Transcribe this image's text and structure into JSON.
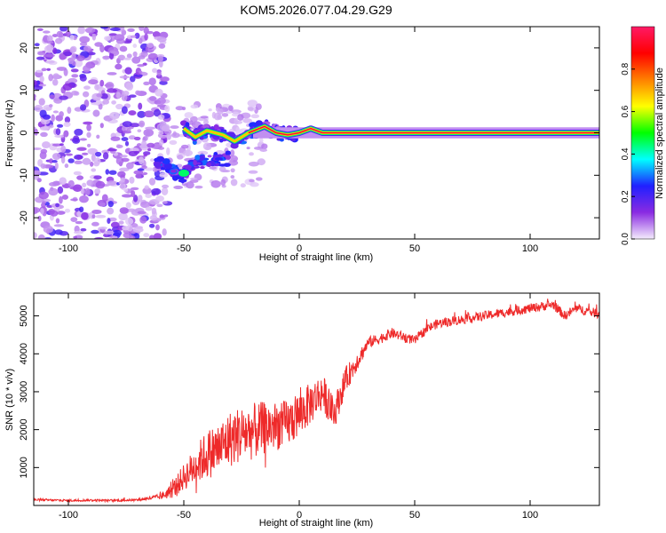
{
  "title": "KOM5.2026.077.04.29.G29",
  "chart_data": [
    {
      "type": "heatmap",
      "xlabel": "Height of straight line (km)",
      "ylabel": "Frequency (Hz)",
      "xlim": [
        -115,
        130
      ],
      "ylim": [
        -25,
        25
      ],
      "xticks": [
        -100,
        -50,
        0,
        50,
        100
      ],
      "yticks": [
        -20,
        -10,
        0,
        10,
        20
      ],
      "grid": false,
      "regions": [
        {
          "x": [
            -115,
            -60
          ],
          "description": "scattered noise",
          "amplitude": [
            0.0,
            0.3
          ],
          "freq": [
            -25,
            25
          ]
        },
        {
          "x": [
            -60,
            -25
          ],
          "description": "patchy signal",
          "amplitude": [
            0.1,
            0.4
          ],
          "freq": [
            -12,
            5
          ]
        },
        {
          "x": [
            -25,
            130
          ],
          "description": "narrow carrier line",
          "amplitude": [
            0.8,
            1.0
          ],
          "freq": [
            -1,
            1
          ]
        }
      ],
      "trace": [
        {
          "x": -50,
          "y": 1
        },
        {
          "x": -45,
          "y": -1
        },
        {
          "x": -40,
          "y": 0.5
        },
        {
          "x": -33,
          "y": -0.5
        },
        {
          "x": -28,
          "y": -2
        },
        {
          "x": -22,
          "y": 0
        },
        {
          "x": -15,
          "y": 1.5
        },
        {
          "x": -10,
          "y": 0
        },
        {
          "x": -5,
          "y": -0.5
        },
        {
          "x": 0,
          "y": 0
        },
        {
          "x": 5,
          "y": 1
        },
        {
          "x": 10,
          "y": 0
        },
        {
          "x": 130,
          "y": 0
        }
      ],
      "trace_low": [
        {
          "x": -62,
          "y": -6
        },
        {
          "x": -55,
          "y": -9
        },
        {
          "x": -50,
          "y": -10
        },
        {
          "x": -45,
          "y": -7
        },
        {
          "x": -38,
          "y": -6.5
        },
        {
          "x": -30,
          "y": -6
        }
      ],
      "colorbar": {
        "label": "Normalized spectral amplitude",
        "range": [
          0,
          1
        ],
        "ticks": [
          0.0,
          0.2,
          0.4,
          0.6,
          0.8
        ],
        "tick_labels": [
          "0.0",
          "0.2",
          "0.4",
          "0.6",
          "0.8"
        ],
        "colors": [
          "#f4ecfc",
          "#8a2be2",
          "#2020ff",
          "#00ffff",
          "#00ff00",
          "#ffff00",
          "#ff8000",
          "#ff0000",
          "#ff1a66"
        ]
      }
    },
    {
      "type": "line",
      "xlabel": "Height of straight line (km)",
      "ylabel": "SNR (10 * v/v)",
      "xlim": [
        -115,
        130
      ],
      "ylim": [
        0,
        5600
      ],
      "xticks": [
        -100,
        -50,
        0,
        50,
        100
      ],
      "yticks": [
        1000,
        2000,
        3000,
        4000,
        5000
      ],
      "grid": false,
      "series": [
        {
          "color": "#ee2a2a",
          "points": [
            [
              -115,
              150
            ],
            [
              -100,
              130
            ],
            [
              -90,
              140
            ],
            [
              -80,
              130
            ],
            [
              -70,
              150
            ],
            [
              -60,
              230
            ],
            [
              -55,
              400
            ],
            [
              -50,
              750
            ],
            [
              -45,
              1050
            ],
            [
              -40,
              1350
            ],
            [
              -35,
              1500
            ],
            [
              -30,
              1750
            ],
            [
              -25,
              1900
            ],
            [
              -20,
              1950
            ],
            [
              -15,
              2050
            ],
            [
              -10,
              2100
            ],
            [
              -5,
              2150
            ],
            [
              0,
              2400
            ],
            [
              5,
              2700
            ],
            [
              10,
              3000
            ],
            [
              15,
              2400
            ],
            [
              20,
              3300
            ],
            [
              25,
              3800
            ],
            [
              30,
              4300
            ],
            [
              35,
              4400
            ],
            [
              40,
              4550
            ],
            [
              45,
              4450
            ],
            [
              50,
              4350
            ],
            [
              55,
              4650
            ],
            [
              60,
              4800
            ],
            [
              70,
              4900
            ],
            [
              80,
              5000
            ],
            [
              90,
              5100
            ],
            [
              100,
              5200
            ],
            [
              110,
              5300
            ],
            [
              115,
              5000
            ],
            [
              120,
              5200
            ],
            [
              130,
              5050
            ]
          ],
          "noise_amplitude": [
            [
              -115,
              60
            ],
            [
              -70,
              60
            ],
            [
              -60,
              150
            ],
            [
              -50,
              700
            ],
            [
              -40,
              1300
            ],
            [
              -30,
              1500
            ],
            [
              -20,
              1500
            ],
            [
              -10,
              1300
            ],
            [
              0,
              1200
            ],
            [
              10,
              1000
            ],
            [
              20,
              700
            ],
            [
              30,
              300
            ],
            [
              50,
              250
            ],
            [
              100,
              250
            ],
            [
              130,
              250
            ]
          ]
        }
      ]
    }
  ]
}
